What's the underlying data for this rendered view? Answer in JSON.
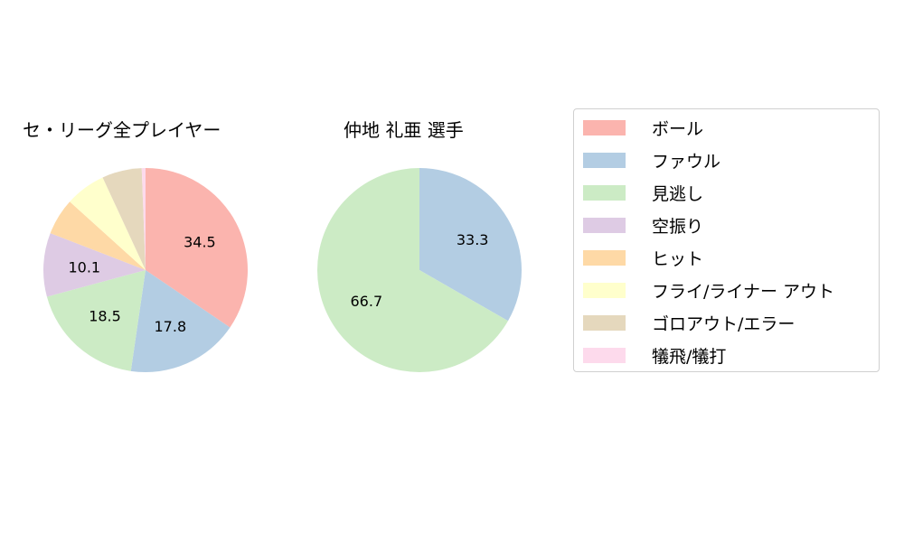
{
  "chart_data": [
    {
      "type": "pie",
      "title": "セ・リーグ全プレイヤー",
      "categories": [
        "ボール",
        "ファウル",
        "見逃し",
        "空振り",
        "ヒット",
        "フライ/ライナー アウト",
        "ゴロアウト/エラー",
        "犠飛/犠打"
      ],
      "values": [
        34.5,
        17.8,
        18.5,
        10.1,
        5.8,
        6.4,
        6.3,
        0.6
      ],
      "labels_shown": [
        "34.5",
        "17.8",
        "18.5",
        "10.1"
      ],
      "start_angle": 90,
      "direction": "clockwise"
    },
    {
      "type": "pie",
      "title": "仲地 礼亜  選手",
      "categories": [
        "ボール",
        "ファウル",
        "見逃し",
        "空振り",
        "ヒット",
        "フライ/ライナー アウト",
        "ゴロアウト/エラー",
        "犠飛/犠打"
      ],
      "values": [
        0,
        33.3,
        66.7,
        0,
        0,
        0,
        0,
        0
      ],
      "labels_shown": [
        "33.3",
        "66.7"
      ],
      "start_angle": 90,
      "direction": "clockwise"
    }
  ],
  "titles": {
    "left": "セ・リーグ全プレイヤー",
    "right": "仲地 礼亜  選手"
  },
  "legend": {
    "items": [
      {
        "label": "ボール",
        "color": "#fbb4ae"
      },
      {
        "label": "ファウル",
        "color": "#b3cde3"
      },
      {
        "label": "見逃し",
        "color": "#ccebc5"
      },
      {
        "label": "空振り",
        "color": "#decbe4"
      },
      {
        "label": "ヒット",
        "color": "#fed9a6"
      },
      {
        "label": "フライ/ライナー アウト",
        "color": "#ffffcc"
      },
      {
        "label": "ゴロアウト/エラー",
        "color": "#e5d8bd"
      },
      {
        "label": "犠飛/犠打",
        "color": "#fddaec"
      }
    ]
  }
}
